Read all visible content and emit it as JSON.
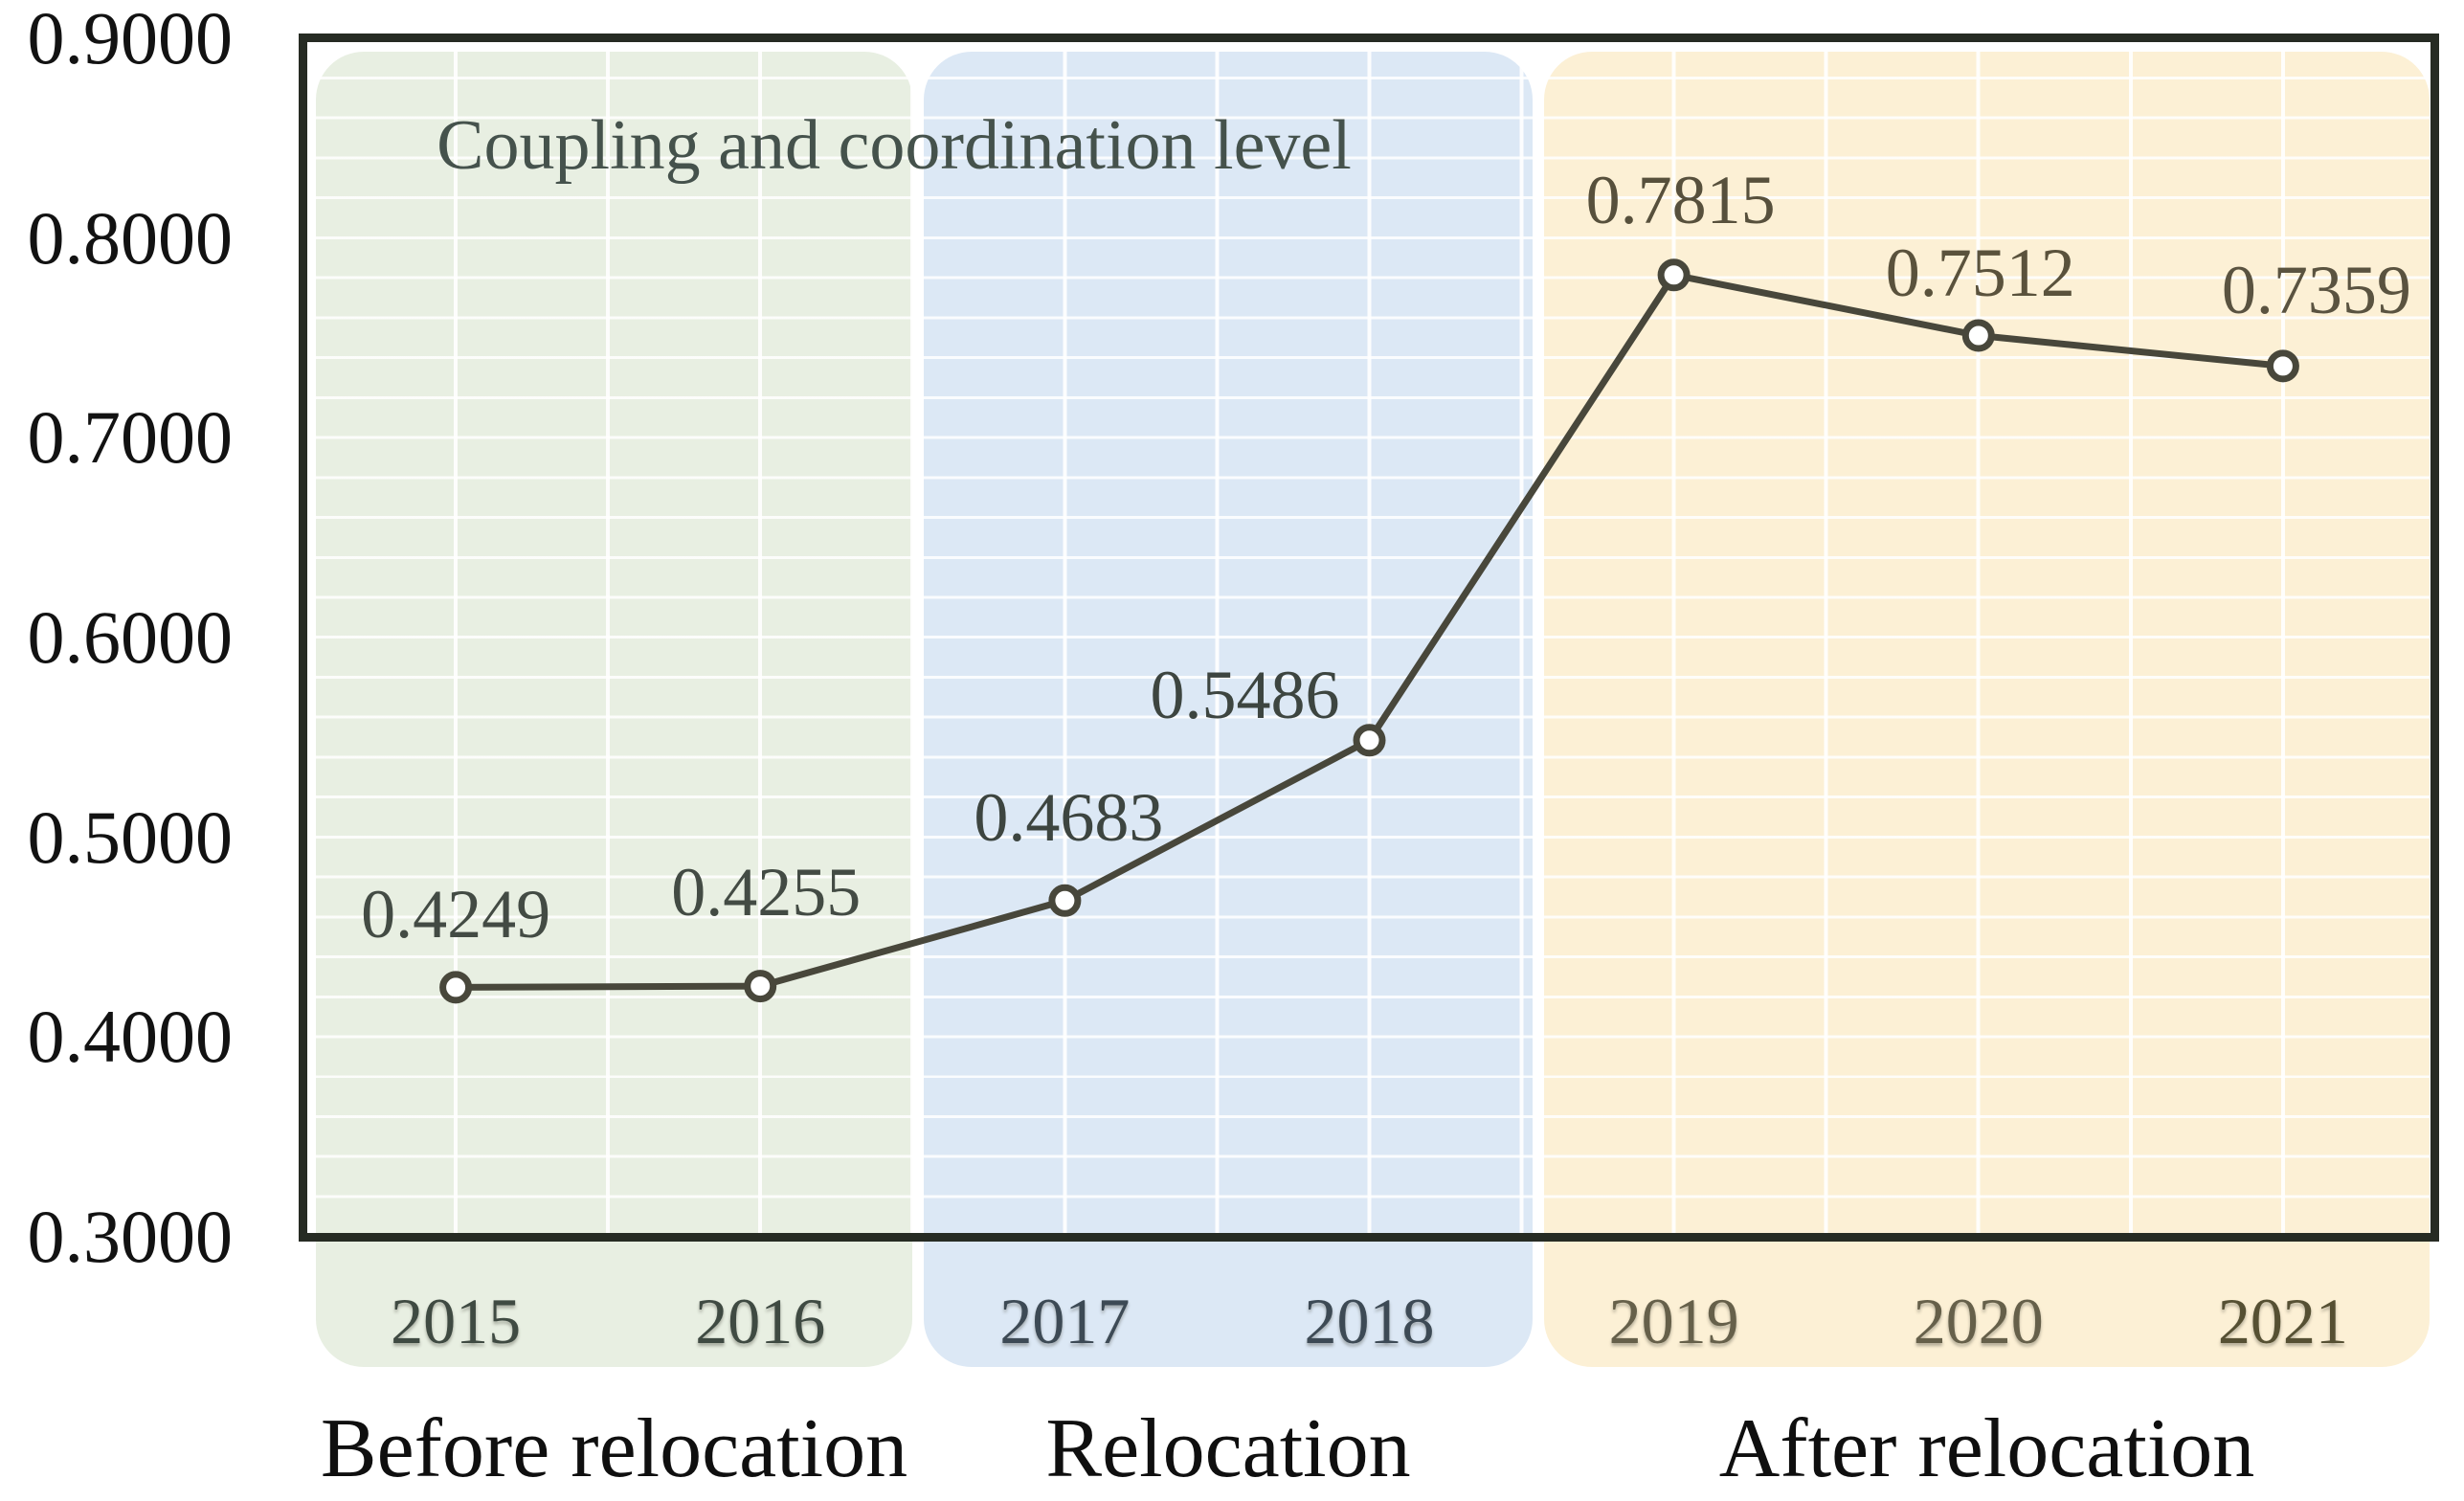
{
  "chart_data": {
    "type": "line",
    "title": "Coupling and coordination level",
    "categories": [
      "2015",
      "2016",
      "2017",
      "2018",
      "2019",
      "2020",
      "2021"
    ],
    "series": [
      {
        "name": "Coupling and coordination level",
        "values": [
          0.4249,
          0.4255,
          0.4683,
          0.5486,
          0.7815,
          0.7512,
          0.7359
        ]
      }
    ],
    "data_labels": [
      "0.4249",
      "0.4255",
      "0.4683",
      "0.5486",
      "0.7815",
      "0.7512",
      "0.7359"
    ],
    "y_ticks": [
      "0.9000",
      "0.8000",
      "0.7000",
      "0.6000",
      "0.5000",
      "0.4000",
      "0.3000"
    ],
    "ylim": [
      0.3,
      0.9
    ],
    "y_minor_grid_step": 0.02,
    "grid": true,
    "legend_position": "none",
    "line_color": "#48473b",
    "marker_style": "open-circle",
    "marker_fill": "#ffffff",
    "phases": [
      {
        "label": "Before relocation",
        "years": [
          "2015",
          "2016"
        ],
        "fill": "#e8efe2"
      },
      {
        "label": "Relocation",
        "years": [
          "2017",
          "2018"
        ],
        "fill": "#dce8f5"
      },
      {
        "label": "After relocation",
        "years": [
          "2019",
          "2020",
          "2021"
        ],
        "fill": "#fcf0d5"
      }
    ]
  }
}
